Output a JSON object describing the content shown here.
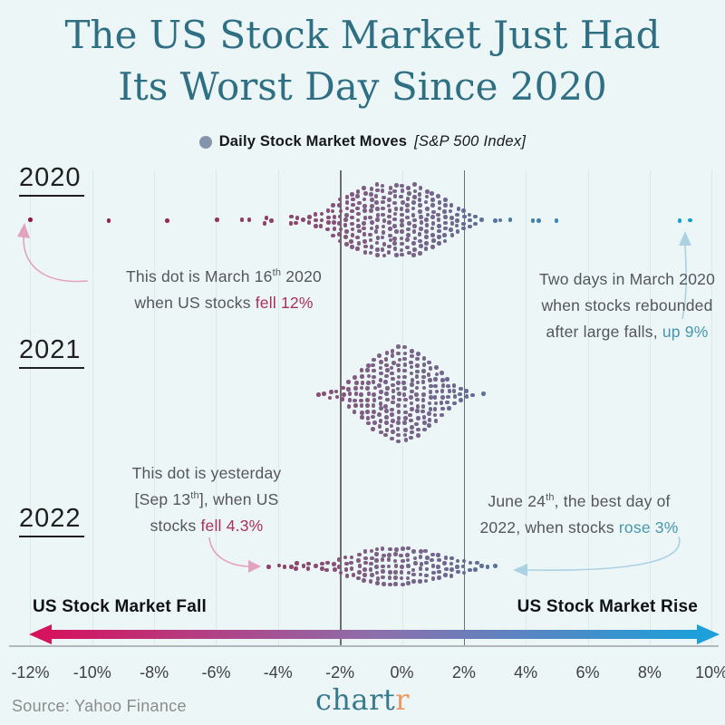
{
  "title": {
    "line1": "The US Stock Market Just Had",
    "line2": "Its Worst Day Since 2020"
  },
  "legend": {
    "label": "Daily Stock Market Moves",
    "sublabel": "[S&P 500 Index]",
    "dot_color": "#8494ab"
  },
  "colors": {
    "bg": "#edf6f7",
    "title_text": "#2e6f84",
    "fall_text": "#a93058",
    "rise_text": "#4596ad",
    "ann_text": "#54555e",
    "year_text": "#1f1f1f",
    "tick_text": "#3f4043",
    "source_text": "#8b8b8b",
    "logo_main": "#39798e",
    "logo_accent": "#ea9a63",
    "grid_light": "#dce9eb",
    "grid_dark": "#6e6e6e",
    "arrow_pink": "#e2a3c0",
    "arrow_blue": "#abd2e2"
  },
  "arrow_bar": {
    "left_label": "US Stock Market Fall",
    "right_label": "US Stock Market Rise",
    "gradient": [
      "#d5135e",
      "#8d6fac",
      "#1d9fda"
    ]
  },
  "footer": {
    "source": "Source: Yahoo Finance",
    "logo_main": "chart",
    "logo_accent": "r"
  },
  "annotations": [
    {
      "id": "m16",
      "lines": [
        [
          {
            "t": "This dot is March 16"
          },
          {
            "t": "th",
            "sup": true
          },
          {
            "t": " 2020"
          }
        ],
        [
          {
            "t": "when US stocks "
          },
          {
            "t": "fell 12%",
            "tone": "fall"
          }
        ]
      ]
    },
    {
      "id": "reb",
      "lines": [
        [
          {
            "t": "Two days in March 2020"
          }
        ],
        [
          {
            "t": "when stocks rebounded"
          }
        ],
        [
          {
            "t": "after large falls, "
          },
          {
            "t": "up 9%",
            "tone": "rise"
          }
        ]
      ]
    },
    {
      "id": "sep13",
      "lines": [
        [
          {
            "t": "This dot is yesterday"
          }
        ],
        [
          {
            "t": "[Sep 13"
          },
          {
            "t": "th",
            "sup": true
          },
          {
            "t": "], when US"
          }
        ],
        [
          {
            "t": "stocks "
          },
          {
            "t": "fell 4.3%",
            "tone": "fall"
          }
        ]
      ]
    },
    {
      "id": "jun24",
      "lines": [
        [
          {
            "t": "June 24"
          },
          {
            "t": "th",
            "sup": true
          },
          {
            "t": ", the best day of"
          }
        ],
        [
          {
            "t": "2022, when stocks "
          },
          {
            "t": "rose 3%",
            "tone": "rise"
          }
        ]
      ]
    }
  ],
  "chart_data": {
    "type": "beeswarm",
    "title": "Daily Stock Market Moves [S&P 500 Index]",
    "x_unit": "percent daily change",
    "axis": {
      "range": [
        -12,
        10
      ],
      "ticks": [
        "-12%",
        "-10%",
        "-8%",
        "-6%",
        "-4%",
        "-2%",
        "0%",
        "2%",
        "4%",
        "6%",
        "8%",
        "10%"
      ],
      "tick_values": [
        -12,
        -10,
        -8,
        -6,
        -4,
        -2,
        0,
        2,
        4,
        6,
        8,
        10
      ],
      "emphasized": [
        -2,
        2
      ],
      "grid": true
    },
    "color_stops": [
      [
        -12,
        "#8e1d40"
      ],
      [
        -6,
        "#96315c"
      ],
      [
        -3,
        "#8c4a72"
      ],
      [
        -1,
        "#7e5f85"
      ],
      [
        0,
        "#7a6387"
      ],
      [
        1.5,
        "#70678f"
      ],
      [
        2.5,
        "#5f7097"
      ],
      [
        3.5,
        "#4f7aa2"
      ],
      [
        5,
        "#3c86b0"
      ],
      [
        7,
        "#2b91c2"
      ],
      [
        10,
        "#14a2d4"
      ]
    ],
    "years": [
      {
        "label": "2020",
        "bins": [
          [
            -12,
            1
          ],
          [
            -9.5,
            1
          ],
          [
            -7.6,
            1
          ],
          [
            -6,
            1
          ],
          [
            -5.2,
            1
          ],
          [
            -4.9,
            1
          ],
          [
            -4.4,
            2
          ],
          [
            -4.2,
            1
          ],
          [
            -3.6,
            2
          ],
          [
            -3.4,
            2
          ],
          [
            -3.2,
            1
          ],
          [
            -3,
            2
          ],
          [
            -2.8,
            3
          ],
          [
            -2.6,
            3
          ],
          [
            -2.4,
            4
          ],
          [
            -2.2,
            6
          ],
          [
            -2,
            8
          ],
          [
            -1.8,
            9
          ],
          [
            -1.6,
            10
          ],
          [
            -1.4,
            11
          ],
          [
            -1.2,
            12
          ],
          [
            -1,
            12
          ],
          [
            -0.8,
            13
          ],
          [
            -0.6,
            13
          ],
          [
            -0.4,
            12
          ],
          [
            -0.2,
            13
          ],
          [
            0,
            13
          ],
          [
            0.2,
            12
          ],
          [
            0.4,
            13
          ],
          [
            0.6,
            12
          ],
          [
            0.8,
            11
          ],
          [
            1,
            10
          ],
          [
            1.2,
            9
          ],
          [
            1.4,
            8
          ],
          [
            1.6,
            6
          ],
          [
            1.8,
            5
          ],
          [
            2,
            4
          ],
          [
            2.2,
            3
          ],
          [
            2.4,
            2
          ],
          [
            2.6,
            1
          ],
          [
            3,
            1
          ],
          [
            3.2,
            1
          ],
          [
            3.5,
            1
          ],
          [
            4.2,
            1
          ],
          [
            4.4,
            1
          ],
          [
            5,
            1
          ],
          [
            9,
            1
          ],
          [
            9.3,
            1
          ]
        ],
        "callouts": [
          {
            "x": -12,
            "text": "March 16th 2020, US stocks fell 12%"
          },
          {
            "x": 9,
            "text": "March 2020 rebound day, up 9%"
          },
          {
            "x": 9.3,
            "text": "March 2020 rebound day, up 9%"
          }
        ]
      },
      {
        "label": "2021",
        "bins": [
          [
            -2.7,
            1
          ],
          [
            -2.5,
            1
          ],
          [
            -2.3,
            2
          ],
          [
            -2.1,
            2
          ],
          [
            -1.9,
            3
          ],
          [
            -1.7,
            5
          ],
          [
            -1.5,
            7
          ],
          [
            -1.3,
            9
          ],
          [
            -1.1,
            11
          ],
          [
            -0.9,
            13
          ],
          [
            -0.7,
            14
          ],
          [
            -0.5,
            15
          ],
          [
            -0.3,
            16
          ],
          [
            -0.1,
            17
          ],
          [
            0.1,
            17
          ],
          [
            0.3,
            16
          ],
          [
            0.5,
            15
          ],
          [
            0.7,
            13
          ],
          [
            0.9,
            12
          ],
          [
            1.1,
            10
          ],
          [
            1.3,
            8
          ],
          [
            1.5,
            6
          ],
          [
            1.7,
            4
          ],
          [
            1.9,
            3
          ],
          [
            2.1,
            2
          ],
          [
            2.3,
            1
          ],
          [
            2.6,
            1
          ]
        ],
        "callouts": []
      },
      {
        "label": "2022",
        "bins": [
          [
            -4.3,
            1
          ],
          [
            -4,
            1
          ],
          [
            -3.8,
            1
          ],
          [
            -3.6,
            1
          ],
          [
            -3.4,
            2
          ],
          [
            -3.2,
            1
          ],
          [
            -3,
            2
          ],
          [
            -2.8,
            1
          ],
          [
            -2.6,
            2
          ],
          [
            -2.4,
            2
          ],
          [
            -2.2,
            2
          ],
          [
            -2,
            3
          ],
          [
            -1.8,
            4
          ],
          [
            -1.6,
            4
          ],
          [
            -1.4,
            5
          ],
          [
            -1.2,
            6
          ],
          [
            -1,
            6
          ],
          [
            -0.8,
            7
          ],
          [
            -0.6,
            7
          ],
          [
            -0.4,
            7
          ],
          [
            -0.2,
            7
          ],
          [
            0,
            7
          ],
          [
            0.2,
            7
          ],
          [
            0.4,
            6
          ],
          [
            0.6,
            6
          ],
          [
            0.8,
            6
          ],
          [
            1,
            5
          ],
          [
            1.2,
            5
          ],
          [
            1.4,
            4
          ],
          [
            1.6,
            4
          ],
          [
            1.8,
            3
          ],
          [
            2,
            3
          ],
          [
            2.2,
            2
          ],
          [
            2.4,
            2
          ],
          [
            2.6,
            1
          ],
          [
            2.8,
            1
          ],
          [
            3,
            1
          ]
        ],
        "callouts": [
          {
            "x": -4.3,
            "text": "Sep 13th 2022 (yesterday), stocks fell 4.3%"
          },
          {
            "x": 3,
            "text": "June 24th 2022, best day of 2022, rose 3%"
          }
        ]
      }
    ]
  }
}
